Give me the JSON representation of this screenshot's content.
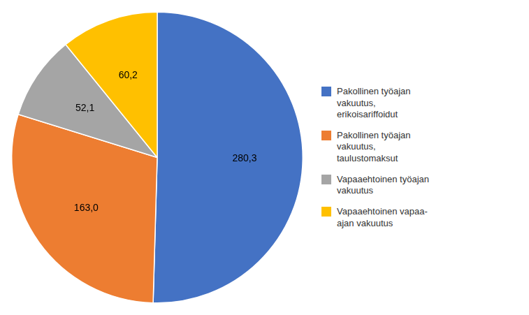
{
  "chart_data": {
    "type": "pie",
    "categories": [
      "Pakollinen työajan\nvakuutus,\nerikoisariffoidut",
      "Pakollinen työajan\nvakuutus,\ntaulustomaksut",
      "Vapaaehtoinen työajan\nvakuutus",
      "Vapaaehtoinen vapaa-\najan vakuutus"
    ],
    "values": [
      280.3,
      163.0,
      52.1,
      60.2
    ],
    "value_labels": [
      "280,3",
      "163,0",
      "52,1",
      "60,2"
    ],
    "colors": [
      "#4472C4",
      "#ED7D31",
      "#A5A5A5",
      "#FFC000"
    ],
    "legend": "right",
    "data_labels": true
  }
}
